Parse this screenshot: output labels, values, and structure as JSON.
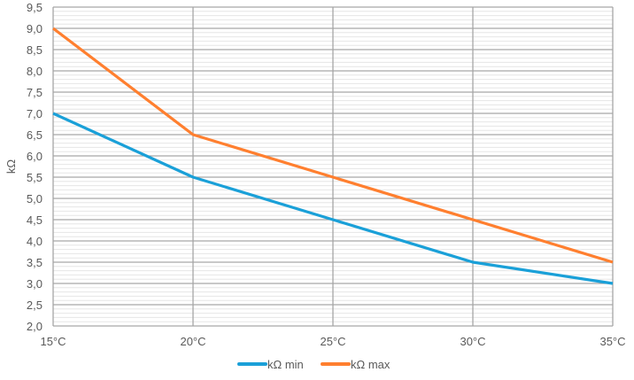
{
  "chart_data": {
    "type": "line",
    "title": "",
    "xlabel": "",
    "ylabel": "kΩ",
    "categories": [
      "15°C",
      "20°C",
      "25°C",
      "30°C",
      "35°C"
    ],
    "x": [
      15,
      20,
      25,
      30,
      35
    ],
    "ylim": [
      2.0,
      9.5
    ],
    "y_major_step": 0.5,
    "y_minor_step": 0.1,
    "y_tick_labels": [
      "2,0",
      "2,5",
      "3,0",
      "3,5",
      "4,0",
      "4,5",
      "5,0",
      "5,5",
      "6,0",
      "6,5",
      "7,0",
      "7,5",
      "8,0",
      "8,5",
      "9,0",
      "9,5"
    ],
    "grid": true,
    "legend_position": "bottom",
    "series": [
      {
        "name": "kΩ min",
        "color": "#1AA0D8",
        "values": [
          7.0,
          5.5,
          4.5,
          3.5,
          3.0
        ]
      },
      {
        "name": "kΩ max",
        "color": "#FF7F2F",
        "values": [
          9.0,
          6.5,
          5.5,
          4.5,
          3.5
        ]
      }
    ]
  }
}
